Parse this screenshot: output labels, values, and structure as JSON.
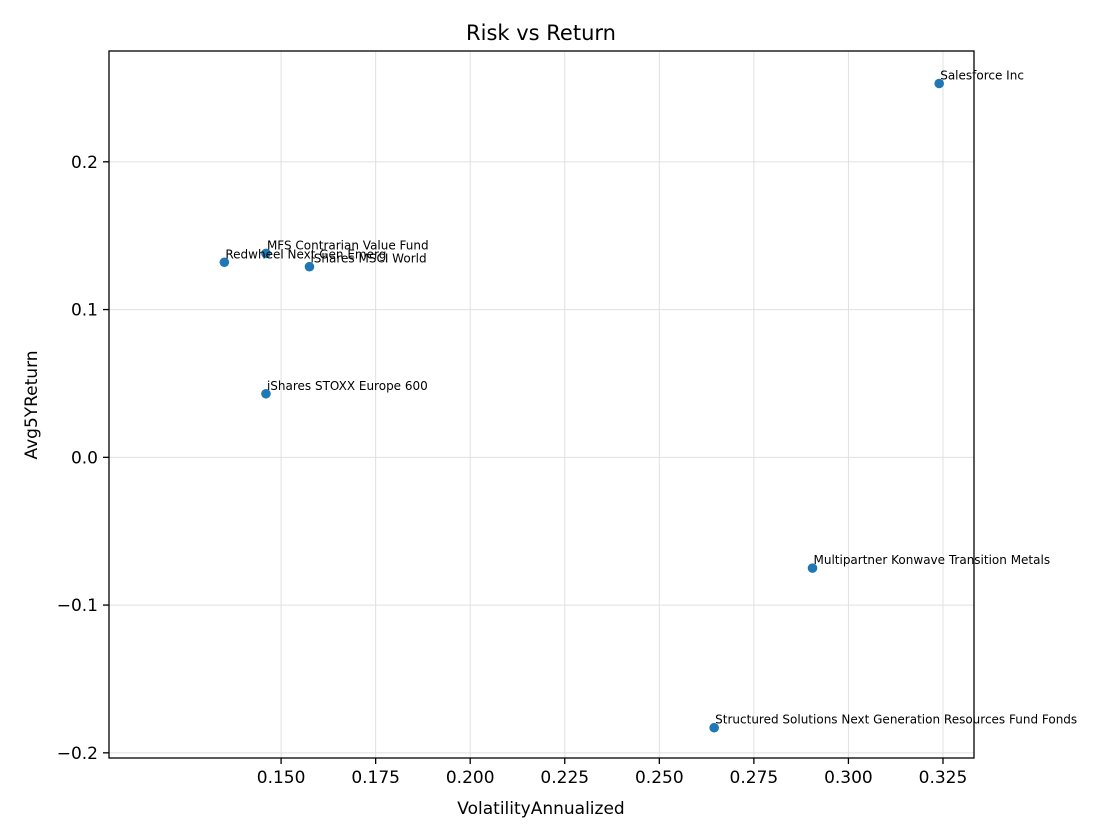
{
  "chart_data": {
    "type": "scatter",
    "title": "Risk vs Return",
    "xlabel": "VolatilityAnnualized",
    "ylabel": "Avg5YReturn",
    "xlim": [
      0.1045,
      0.3332
    ],
    "ylim": [
      -0.2035,
      0.275
    ],
    "xticks": [
      0.15,
      0.175,
      0.2,
      0.225,
      0.25,
      0.275,
      0.3,
      0.325
    ],
    "xtick_labels": [
      "0.150",
      "0.175",
      "0.200",
      "0.225",
      "0.250",
      "0.275",
      "0.300",
      "0.325"
    ],
    "yticks": [
      -0.2,
      -0.1,
      0.0,
      0.1,
      0.2
    ],
    "ytick_labels": [
      "−0.2",
      "−0.1",
      "0.0",
      "0.1",
      "0.2"
    ],
    "grid": true,
    "point_color": "#1f77b4",
    "points": [
      {
        "label": "Salesforce Inc",
        "x": 0.324,
        "y": 0.253
      },
      {
        "label": "MFS Contrarian Value Fund",
        "x": 0.146,
        "y": 0.138
      },
      {
        "label": "Redwheel Next Gen Emerg",
        "x": 0.135,
        "y": 0.132
      },
      {
        "label": "iShares MSCI World",
        "x": 0.1575,
        "y": 0.129
      },
      {
        "label": "iShares STOXX Europe 600",
        "x": 0.146,
        "y": 0.043
      },
      {
        "label": "Multipartner Konwave Transition Metals",
        "x": 0.2905,
        "y": -0.075
      },
      {
        "label": "Structured Solutions Next Generation Resources Fund Fonds",
        "x": 0.2645,
        "y": -0.183
      }
    ]
  }
}
